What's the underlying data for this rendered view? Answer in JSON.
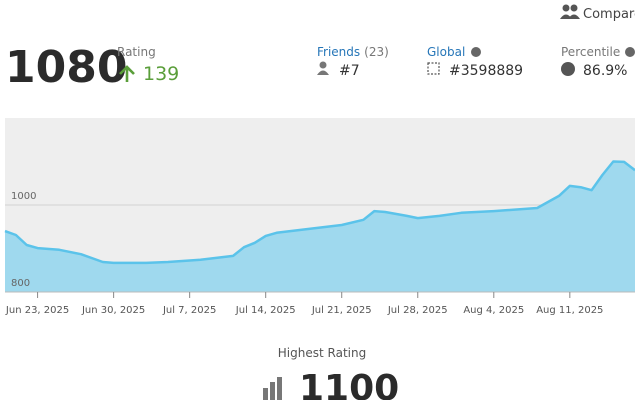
{
  "compare": "Compare",
  "rating": {
    "value": "1080",
    "label": "Rating",
    "change": "139"
  },
  "friends": {
    "label": "Friends",
    "count": "(23)",
    "rank": "#7"
  },
  "global": {
    "label": "Global",
    "rank": "#3598889"
  },
  "percentile": {
    "label": "Percentile",
    "value": "86.9%"
  },
  "chart_data": {
    "type": "area",
    "color": "#5bc3ea",
    "fill": "#9fd9ee",
    "x": [
      "2025-06-20",
      "2025-06-21",
      "2025-06-22",
      "2025-06-23",
      "2025-06-25",
      "2025-06-27",
      "2025-06-29",
      "2025-06-30",
      "2025-07-03",
      "2025-07-05",
      "2025-07-08",
      "2025-07-11",
      "2025-07-12",
      "2025-07-13",
      "2025-07-14",
      "2025-07-15",
      "2025-07-18",
      "2025-07-21",
      "2025-07-23",
      "2025-07-24",
      "2025-07-25",
      "2025-07-27",
      "2025-07-28",
      "2025-07-30",
      "2025-08-01",
      "2025-08-04",
      "2025-08-08",
      "2025-08-10",
      "2025-08-11",
      "2025-08-12",
      "2025-08-13",
      "2025-08-14",
      "2025-08-15",
      "2025-08-16",
      "2025-08-17"
    ],
    "values": [
      940,
      931,
      908,
      901,
      897,
      887,
      869,
      867,
      867,
      869,
      874,
      883,
      903,
      913,
      929,
      936,
      945,
      954,
      966,
      986,
      984,
      975,
      970,
      975,
      982,
      986,
      993,
      1021,
      1044,
      1041,
      1034,
      1069,
      1100,
      1099,
      1080
    ],
    "xlim": [
      "2025-06-20",
      "2025-08-17"
    ],
    "xticks": [
      {
        "value": "2025-06-23",
        "label": "Jun 23, 2025"
      },
      {
        "value": "2025-06-30",
        "label": "Jun 30, 2025"
      },
      {
        "value": "2025-07-07",
        "label": "Jul 7, 2025"
      },
      {
        "value": "2025-07-14",
        "label": "Jul 14, 2025"
      },
      {
        "value": "2025-07-21",
        "label": "Jul 21, 2025"
      },
      {
        "value": "2025-07-28",
        "label": "Jul 28, 2025"
      },
      {
        "value": "2025-08-04",
        "label": "Aug 4, 2025"
      },
      {
        "value": "2025-08-11",
        "label": "Aug 11, 2025"
      }
    ],
    "ylim": [
      800,
      1200
    ],
    "yticks": [
      800,
      1000
    ],
    "grid": true
  },
  "highest": {
    "label": "Highest Rating",
    "value": "1100"
  }
}
